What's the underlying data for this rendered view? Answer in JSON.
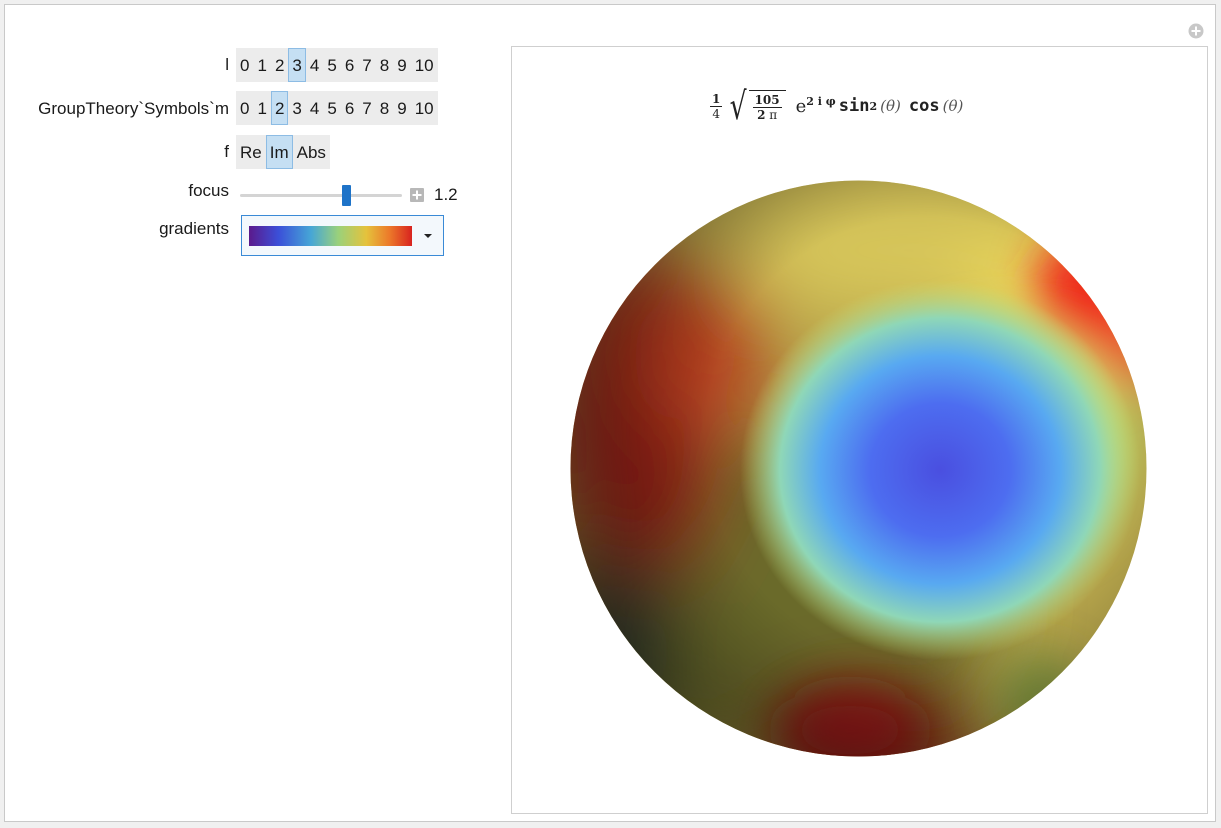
{
  "controls": {
    "l": {
      "label": "l",
      "options": [
        "0",
        "1",
        "2",
        "3",
        "4",
        "5",
        "6",
        "7",
        "8",
        "9",
        "10"
      ],
      "selected": "3"
    },
    "m": {
      "label": "GroupTheory`Symbols`m",
      "options": [
        "0",
        "1",
        "2",
        "3",
        "4",
        "5",
        "6",
        "7",
        "8",
        "9",
        "10"
      ],
      "selected": "2"
    },
    "f": {
      "label": "f",
      "options": [
        "Re",
        "Im",
        "Abs"
      ],
      "selected": "Im"
    },
    "focus": {
      "label": "focus",
      "value": "1.2",
      "fraction": 0.66
    },
    "gradients": {
      "label": "gradients",
      "selected_icon": "rainbow-gradient-swatch"
    }
  },
  "formula": {
    "coef_num": "1",
    "coef_den": "4",
    "sqrt_num": "105",
    "sqrt_den_num": "2",
    "sqrt_den_sym": "π",
    "exp_base": "e",
    "exp_power": "2 i φ",
    "sin_fn": "sin",
    "sin_power": "2",
    "theta": "(θ)",
    "cos_fn": "cos",
    "theta2": "(θ)"
  },
  "colors": {
    "selected_bg": "#c5dff3",
    "setter_bg": "#ececec",
    "slider_thumb": "#1e73c8",
    "popup_border": "#3a8ad6"
  },
  "icons": {
    "corner": "add-circle-icon",
    "slider_expand": "plus-box-icon",
    "dropdown": "chevron-down-icon"
  }
}
